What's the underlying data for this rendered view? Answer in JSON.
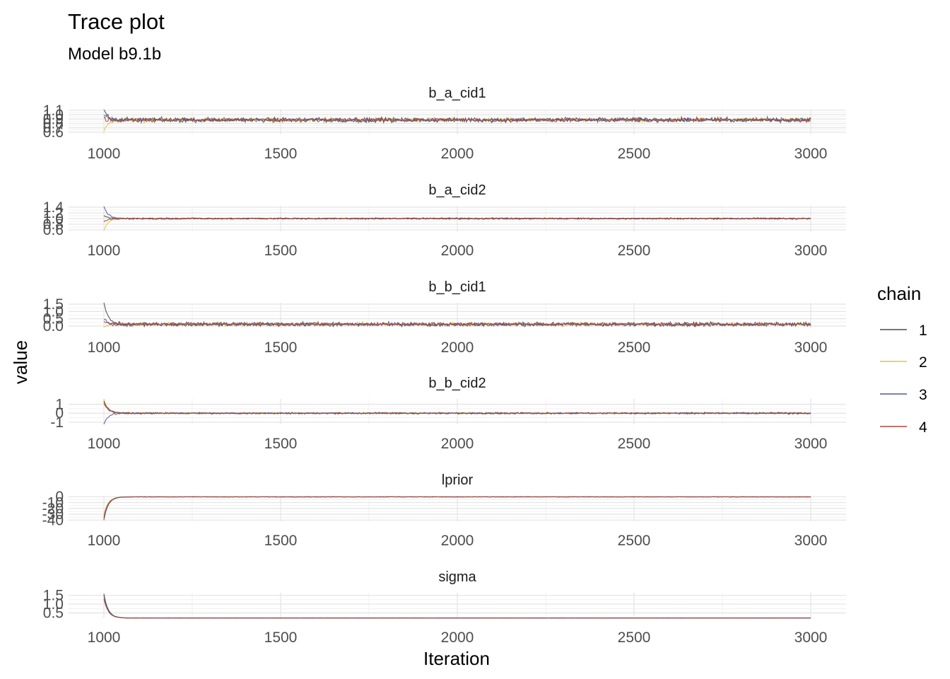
{
  "chart_data": {
    "type": "line",
    "title": "Trace plot",
    "subtitle": "Model b9.1b",
    "xlabel": "Iteration",
    "ylabel": "value",
    "xlim": [
      1000,
      3000
    ],
    "x_ticks": [
      1000,
      1500,
      2000,
      2500,
      3000
    ],
    "grid": true,
    "legend": {
      "title": "chain",
      "placement": "right",
      "entries": [
        {
          "label": "1",
          "color": "#4b4b4b"
        },
        {
          "label": "2",
          "color": "#e3c443"
        },
        {
          "label": "3",
          "color": "#4f5a92"
        },
        {
          "label": "4",
          "color": "#a8483e"
        }
      ]
    },
    "panels": [
      {
        "name": "b_a_cid1",
        "ylim": [
          0.55,
          1.13
        ],
        "y_ticks": [
          {
            "value": 1.1,
            "label": "1.1"
          },
          {
            "value": 1.0,
            "label": "1.0"
          },
          {
            "value": 0.9,
            "label": "0.9"
          },
          {
            "value": 0.8,
            "label": "0.8"
          },
          {
            "value": 0.7,
            "label": "0.7"
          },
          {
            "value": 0.6,
            "label": "0.6"
          }
        ],
        "center": 0.88,
        "spread": 0.035,
        "warmup": [
          {
            "chain": 0,
            "start": 1.12
          },
          {
            "chain": 1,
            "start": 0.6
          },
          {
            "chain": 2,
            "start": 1.0
          },
          {
            "chain": 3,
            "start": 0.9
          }
        ]
      },
      {
        "name": "b_a_cid2",
        "ylim": [
          0.55,
          1.45
        ],
        "y_ticks": [
          {
            "value": 1.4,
            "label": "1.4"
          },
          {
            "value": 1.2,
            "label": "1.2"
          },
          {
            "value": 1.0,
            "label": "1.0"
          },
          {
            "value": 0.8,
            "label": "0.8"
          },
          {
            "value": 0.6,
            "label": "0.6"
          }
        ],
        "center": 1.0,
        "spread": 0.018,
        "warmup": [
          {
            "chain": 0,
            "start": 1.1
          },
          {
            "chain": 1,
            "start": 0.6
          },
          {
            "chain": 2,
            "start": 1.42
          },
          {
            "chain": 3,
            "start": 0.9
          }
        ]
      },
      {
        "name": "b_b_cid1",
        "ylim": [
          -0.15,
          1.6
        ],
        "y_ticks": [
          {
            "value": 1.5,
            "label": "1.5"
          },
          {
            "value": 1.0,
            "label": "1.0"
          },
          {
            "value": 0.5,
            "label": "0.5"
          },
          {
            "value": 0.0,
            "label": "0.0"
          }
        ],
        "center": 0.12,
        "spread": 0.09,
        "warmup": [
          {
            "chain": 0,
            "start": 1.55
          },
          {
            "chain": 1,
            "start": -0.1
          },
          {
            "chain": 2,
            "start": 0.5
          },
          {
            "chain": 3,
            "start": 0.3
          }
        ]
      },
      {
        "name": "b_b_cid2",
        "ylim": [
          -1.25,
          1.6
        ],
        "y_ticks": [
          {
            "value": 1,
            "label": "1"
          },
          {
            "value": 0,
            "label": "0"
          },
          {
            "value": -1,
            "label": "-1"
          }
        ],
        "center": 0.0,
        "spread": 0.06,
        "warmup": [
          {
            "chain": 0,
            "start": 1.4
          },
          {
            "chain": 1,
            "start": 1.5
          },
          {
            "chain": 2,
            "start": -1.2
          },
          {
            "chain": 3,
            "start": 1.2
          }
        ]
      },
      {
        "name": "lprior",
        "ylim": [
          -42,
          1.5
        ],
        "y_ticks": [
          {
            "value": 0,
            "label": "0"
          },
          {
            "value": -10,
            "label": "-10"
          },
          {
            "value": -20,
            "label": "-20"
          },
          {
            "value": -30,
            "label": "-30"
          },
          {
            "value": -40,
            "label": "-40"
          }
        ],
        "center": -0.3,
        "spread": 0.25,
        "warmup": [
          {
            "chain": 0,
            "start": -38
          },
          {
            "chain": 1,
            "start": -30
          },
          {
            "chain": 2,
            "start": -35
          },
          {
            "chain": 3,
            "start": -40
          }
        ]
      },
      {
        "name": "sigma",
        "ylim": [
          0.2,
          1.65
        ],
        "y_ticks": [
          {
            "value": 1.5,
            "label": "1.5"
          },
          {
            "value": 1.0,
            "label": "1.0"
          },
          {
            "value": 0.5,
            "label": "0.5"
          }
        ],
        "center": 0.21,
        "spread": 0.008,
        "warmup": [
          {
            "chain": 0,
            "start": 1.6
          },
          {
            "chain": 1,
            "start": 1.4
          },
          {
            "chain": 2,
            "start": 1.5
          },
          {
            "chain": 3,
            "start": 1.3
          }
        ]
      }
    ]
  }
}
